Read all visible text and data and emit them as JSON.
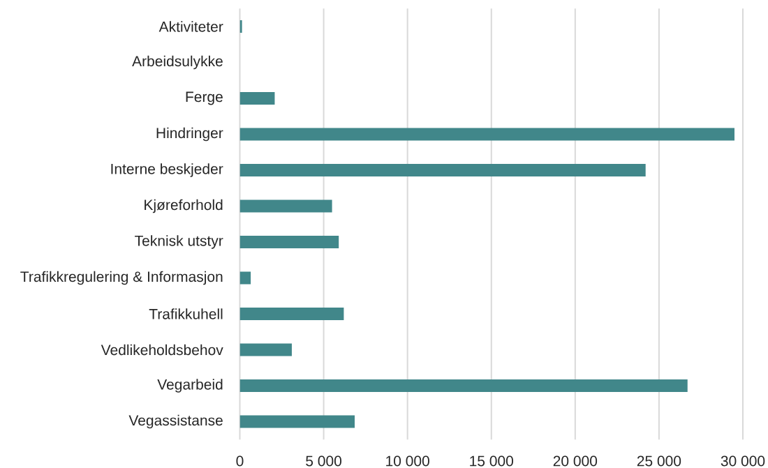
{
  "chart_data": {
    "type": "bar",
    "orientation": "horizontal",
    "categories": [
      "Aktiviteter",
      "Arbeidsulykke",
      "Ferge",
      "Hindringer",
      "Interne beskjeder",
      "Kjøreforhold",
      "Teknisk utstyr",
      "Trafikkregulering & Informasjon",
      "Trafikkuhell",
      "Vedlikeholdsbehov",
      "Vegarbeid",
      "Vegassistanse"
    ],
    "values": [
      130,
      0,
      2080,
      29500,
      24200,
      5500,
      5900,
      650,
      6200,
      3100,
      26700,
      6850
    ],
    "color": "#41878a",
    "xlim": [
      0,
      30000
    ],
    "xticks": [
      0,
      {
        "value": 5000,
        "label": "5 000"
      },
      {
        "value": 10000,
        "label": "10 000"
      },
      {
        "value": 15000,
        "label": "15 000"
      },
      {
        "value": 20000,
        "label": "20 000"
      },
      {
        "value": 25000,
        "label": "25 000"
      },
      {
        "value": 30000,
        "label": "30 000"
      }
    ],
    "grid": "x"
  }
}
